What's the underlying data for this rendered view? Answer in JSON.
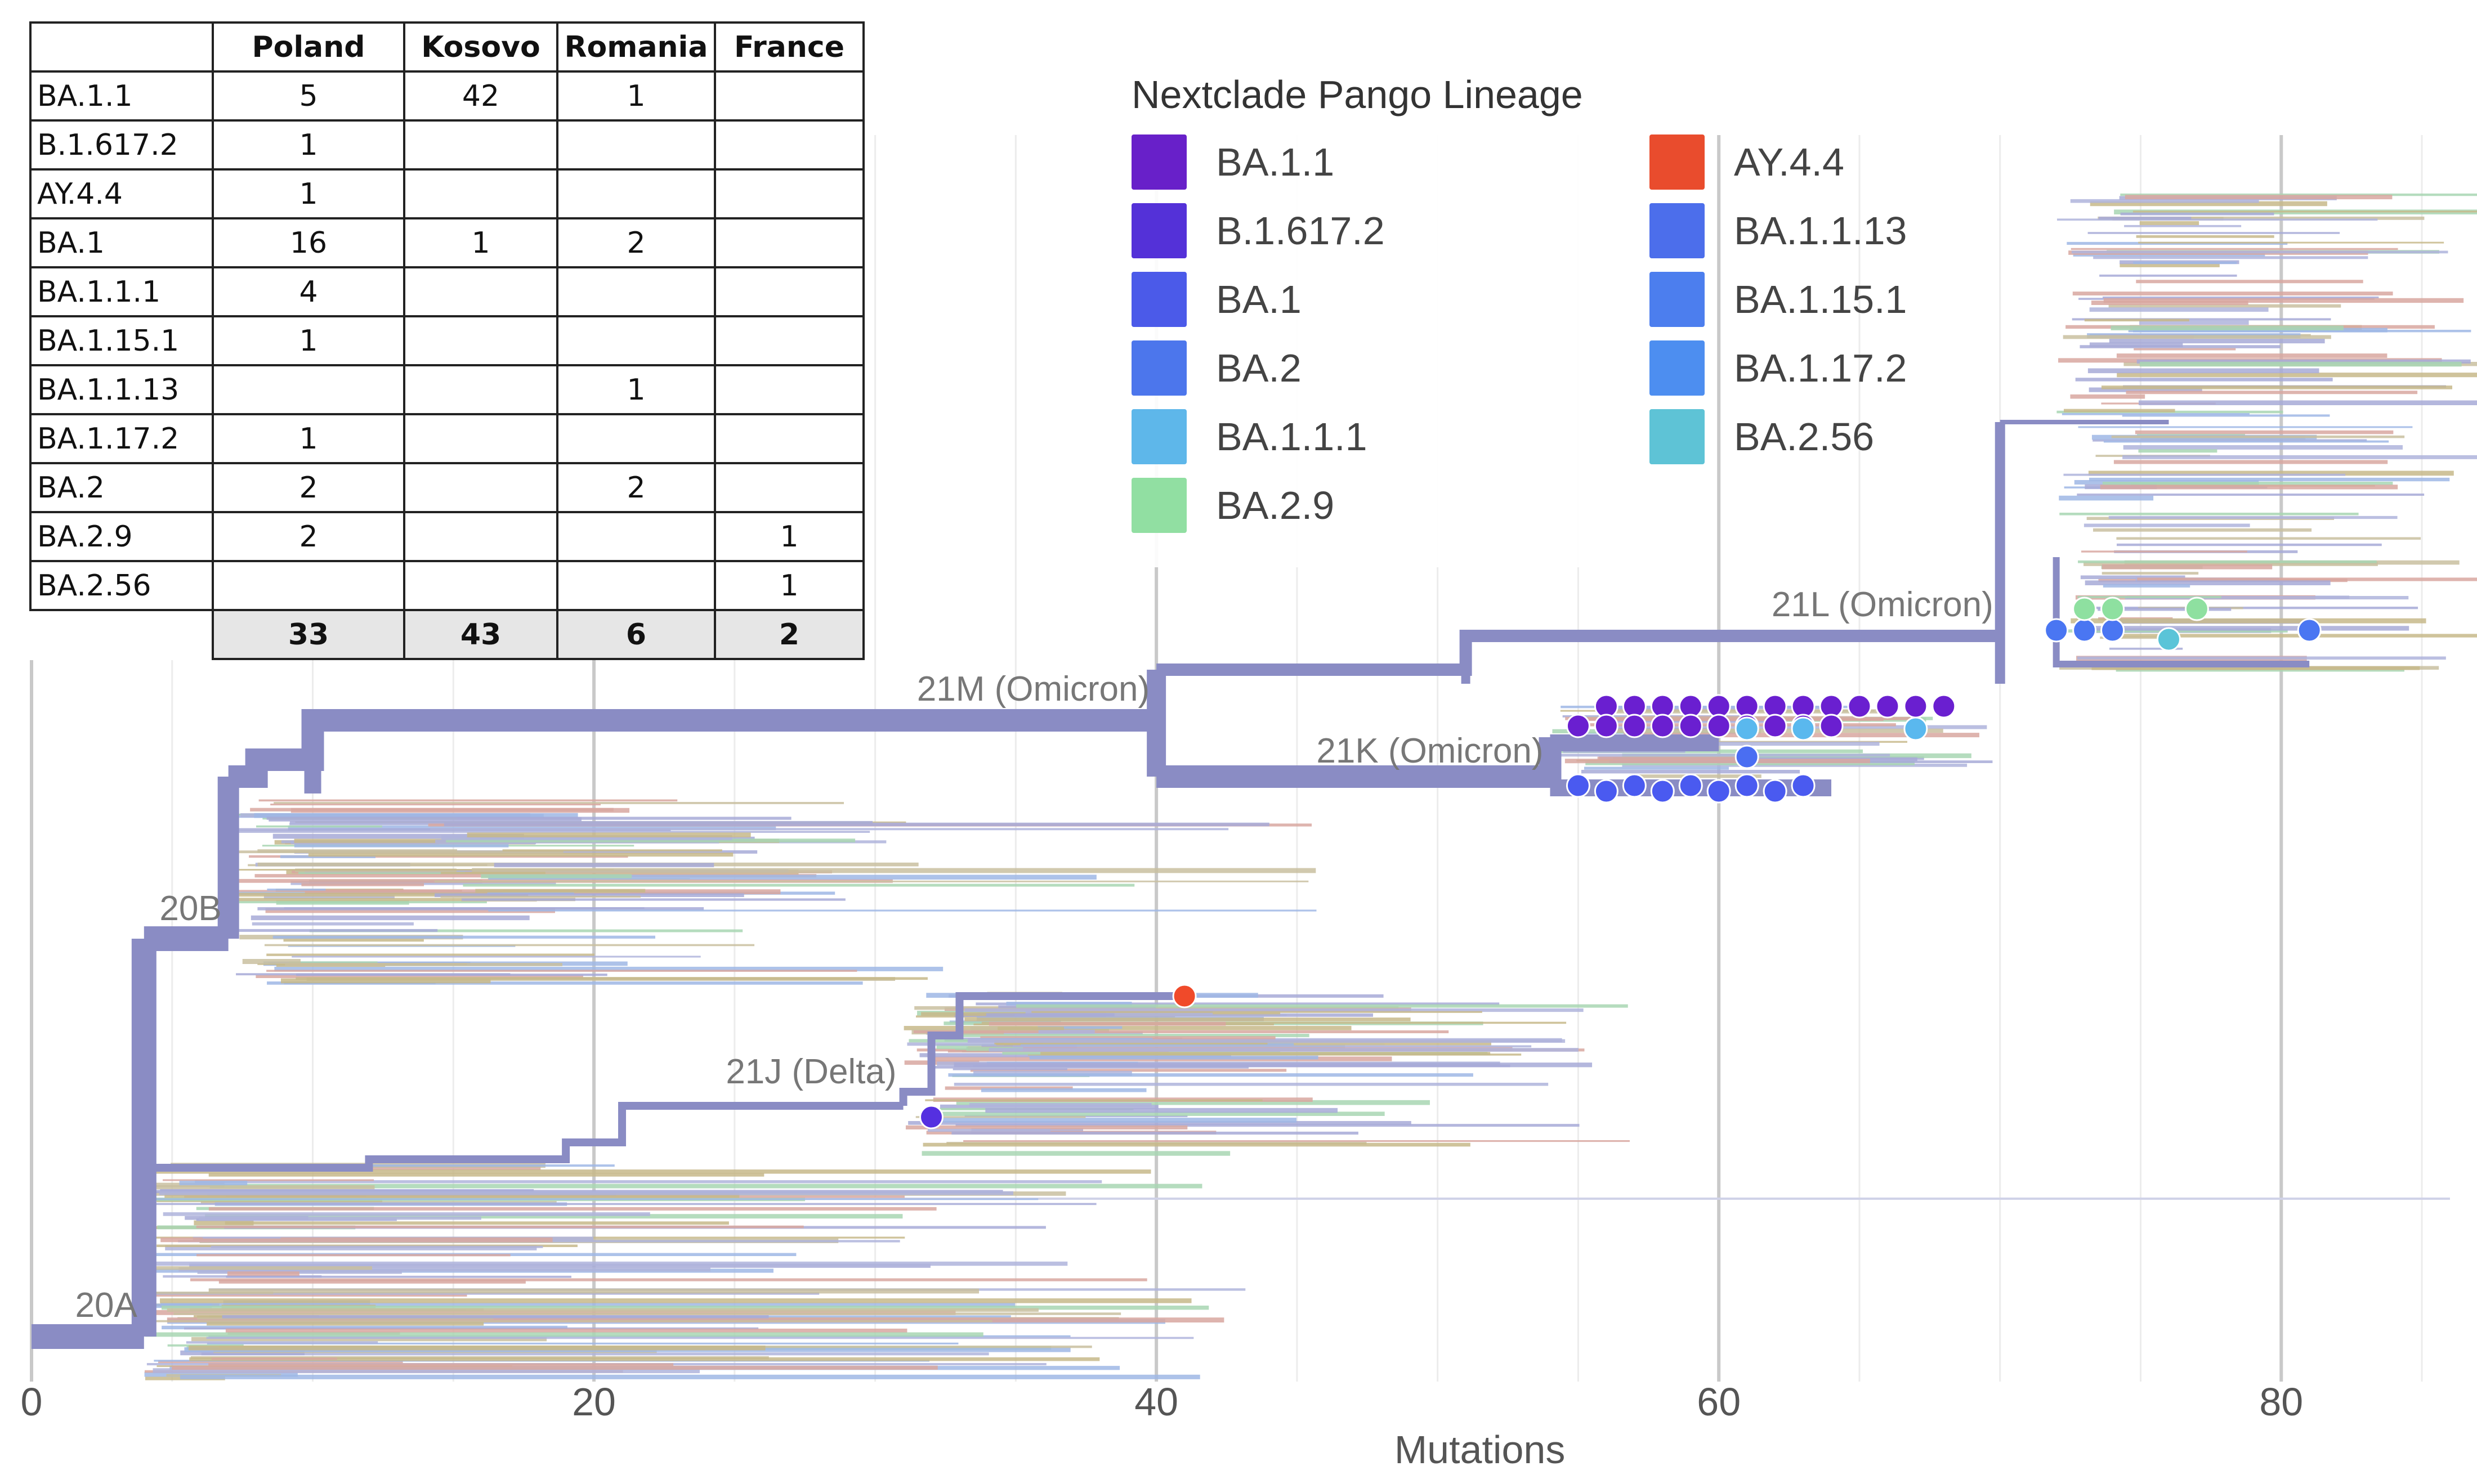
{
  "table": {
    "headers": [
      "",
      "Poland",
      "Kosovo",
      "Romania",
      "France"
    ],
    "rows": [
      {
        "lineage": "BA.1.1",
        "values": [
          "5",
          "42",
          "1",
          ""
        ]
      },
      {
        "lineage": "B.1.617.2",
        "values": [
          "1",
          "",
          "",
          ""
        ]
      },
      {
        "lineage": "AY.4.4",
        "values": [
          "1",
          "",
          "",
          ""
        ]
      },
      {
        "lineage": "BA.1",
        "values": [
          "16",
          "1",
          "2",
          ""
        ]
      },
      {
        "lineage": "BA.1.1.1",
        "values": [
          "4",
          "",
          "",
          ""
        ]
      },
      {
        "lineage": "BA.1.15.1",
        "values": [
          "1",
          "",
          "",
          ""
        ]
      },
      {
        "lineage": "BA.1.1.13",
        "values": [
          "",
          "",
          "1",
          ""
        ]
      },
      {
        "lineage": "BA.1.17.2",
        "values": [
          "1",
          "",
          "",
          ""
        ]
      },
      {
        "lineage": "BA.2",
        "values": [
          "2",
          "",
          "2",
          ""
        ]
      },
      {
        "lineage": "BA.2.9",
        "values": [
          "2",
          "",
          "",
          "1"
        ]
      },
      {
        "lineage": "BA.2.56",
        "values": [
          "",
          "",
          "",
          "1"
        ]
      }
    ],
    "totals": [
      "33",
      "43",
      "6",
      "2"
    ]
  },
  "legend": {
    "title": "Nextclade Pango Lineage",
    "items": [
      {
        "label": "BA.1.1",
        "color": "#6a1fd0"
      },
      {
        "label": "AY.4.4",
        "color": "#f04a2a"
      },
      {
        "label": "B.1.617.2",
        "color": "#5530e0"
      },
      {
        "label": "BA.1.1.13",
        "color": "#4a6ef2"
      },
      {
        "label": "BA.1",
        "color": "#4a5af0"
      },
      {
        "label": "BA.1.15.1",
        "color": "#4a7ef4"
      },
      {
        "label": "BA.2",
        "color": "#4a76f2"
      },
      {
        "label": "BA.1.17.2",
        "color": "#4a8ef6"
      },
      {
        "label": "BA.1.1.1",
        "color": "#5ab8ee"
      },
      {
        "label": "BA.2.56",
        "color": "#5ac4d8"
      },
      {
        "label": "BA.2.9",
        "color": "#8ee0a0"
      }
    ]
  },
  "chart_data": {
    "type": "phylogenetic-tree",
    "xlabel": "Mutations",
    "xlim": [
      0,
      86
    ],
    "xticks": [
      0,
      20,
      40,
      60,
      80
    ],
    "grid": true,
    "branch_color": "#8a8cc4",
    "clades": [
      {
        "label": "20A",
        "x": 4
      },
      {
        "label": "20B",
        "x": 7
      },
      {
        "label": "21J (Delta)",
        "x": 31
      },
      {
        "label": "21M (Omicron)",
        "x": 40
      },
      {
        "label": "21K (Omicron)",
        "x": 54
      },
      {
        "label": "21L (Omicron)",
        "x": 70
      }
    ],
    "tips": [
      {
        "lineage": "AY.4.4",
        "x": 41
      },
      {
        "lineage": "B.1.617.2",
        "x": 32
      },
      {
        "lineage": "BA.1.1",
        "x": [
          56,
          57,
          58,
          59,
          60,
          61,
          62,
          63,
          64,
          65,
          66,
          67,
          68,
          55,
          56,
          57,
          58,
          59,
          60,
          61,
          62,
          63,
          64
        ]
      },
      {
        "lineage": "BA.1",
        "x": [
          55,
          56,
          57,
          58,
          59,
          60,
          61,
          62,
          63
        ]
      },
      {
        "lineage": "BA.1.1.1",
        "x": [
          61,
          63,
          67
        ]
      },
      {
        "lineage": "BA.1.1.13",
        "x": [
          61
        ]
      },
      {
        "lineage": "BA.2",
        "x": [
          72,
          73,
          74,
          81
        ]
      },
      {
        "lineage": "BA.2.9",
        "x": [
          73,
          74,
          77
        ]
      },
      {
        "lineage": "BA.2.56",
        "x": [
          76
        ]
      }
    ]
  }
}
